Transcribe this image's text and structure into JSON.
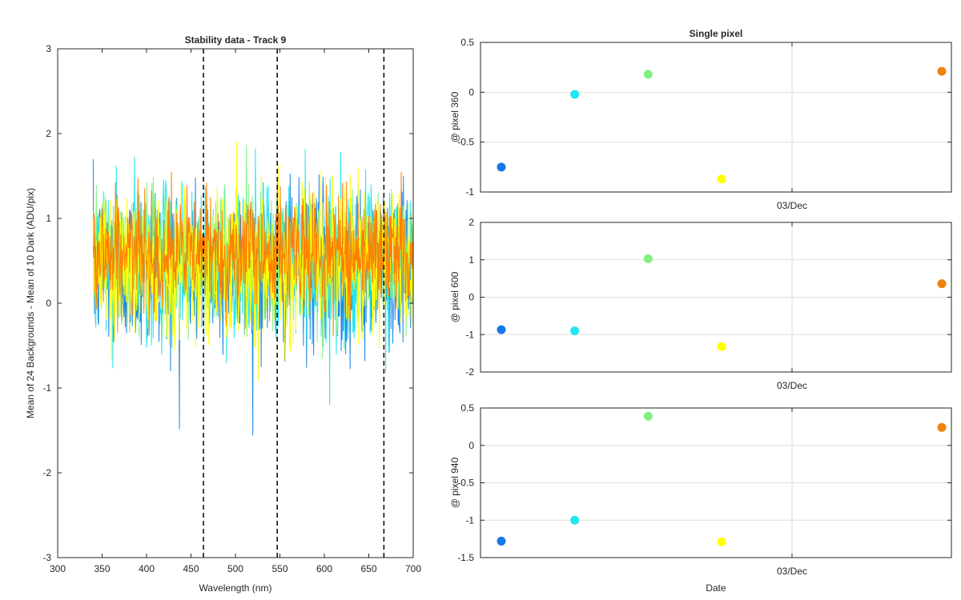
{
  "chart_data": [
    {
      "type": "line",
      "title": "Stability data - Track 9",
      "xlabel": "Wavelength (nm)",
      "ylabel": "Mean of 24 Backgrounds - Mean of 10 Dark (ADU/pix)",
      "xlim": [
        300,
        700
      ],
      "ylim": [
        -3,
        3
      ],
      "xticks": [
        "300",
        "350",
        "400",
        "450",
        "500",
        "550",
        "600",
        "650",
        "700"
      ],
      "yticks": [
        "-3",
        "-2",
        "-1",
        "0",
        "1",
        "2",
        "3"
      ],
      "grid": false,
      "legend": "none",
      "vlines": [
        464,
        547,
        667
      ],
      "series_colors": [
        "#1e88e5",
        "#22e6ef",
        "#80f080",
        "#ffff00",
        "#ff8000"
      ],
      "series_summary": {
        "x_range": [
          340,
          700
        ],
        "center_values": [
          0.4,
          0.5,
          0.55,
          0.5,
          0.6
        ],
        "spread_values": [
          0.85,
          0.8,
          0.7,
          0.8,
          0.6
        ]
      }
    },
    {
      "type": "scatter",
      "title": "Single pixel",
      "xlabel": "",
      "ylabel": "@ pixel 360",
      "ylim": [
        -1,
        0.5
      ],
      "yticks": [
        "-1",
        "-0.5",
        "0",
        "0.5"
      ],
      "xtick_label": "03/Dec",
      "grid": true,
      "points": [
        {
          "x": 1,
          "y": -0.75,
          "color": "#1677e6"
        },
        {
          "x": 2,
          "y": -0.02,
          "color": "#22e6ef"
        },
        {
          "x": 3,
          "y": 0.18,
          "color": "#80f080"
        },
        {
          "x": 4,
          "y": -0.87,
          "color": "#ffff00"
        },
        {
          "x": 7,
          "y": 0.21,
          "color": "#f08010"
        }
      ]
    },
    {
      "type": "scatter",
      "title": "",
      "xlabel": "",
      "ylabel": "@ pixel 600",
      "ylim": [
        -2,
        2
      ],
      "yticks": [
        "-2",
        "-1",
        "0",
        "1",
        "2"
      ],
      "xtick_label": "03/Dec",
      "grid": true,
      "points": [
        {
          "x": 1,
          "y": -0.87,
          "color": "#1677e6"
        },
        {
          "x": 2,
          "y": -0.9,
          "color": "#22e6ef"
        },
        {
          "x": 3,
          "y": 1.03,
          "color": "#80f080"
        },
        {
          "x": 4,
          "y": -1.32,
          "color": "#ffff00"
        },
        {
          "x": 7,
          "y": 0.36,
          "color": "#f08010"
        }
      ]
    },
    {
      "type": "scatter",
      "title": "",
      "xlabel": "Date",
      "ylabel": "@ pixel 940",
      "ylim": [
        -1.5,
        0.5
      ],
      "yticks": [
        "-1.5",
        "-1",
        "-0.5",
        "0",
        "0.5"
      ],
      "xtick_label": "03/Dec",
      "grid": true,
      "points": [
        {
          "x": 1,
          "y": -1.28,
          "color": "#1677e6"
        },
        {
          "x": 2,
          "y": -1.0,
          "color": "#22e6ef"
        },
        {
          "x": 3,
          "y": 0.39,
          "color": "#80f080"
        },
        {
          "x": 4,
          "y": -1.29,
          "color": "#ffff00"
        },
        {
          "x": 7,
          "y": 0.24,
          "color": "#f08010"
        }
      ]
    }
  ]
}
